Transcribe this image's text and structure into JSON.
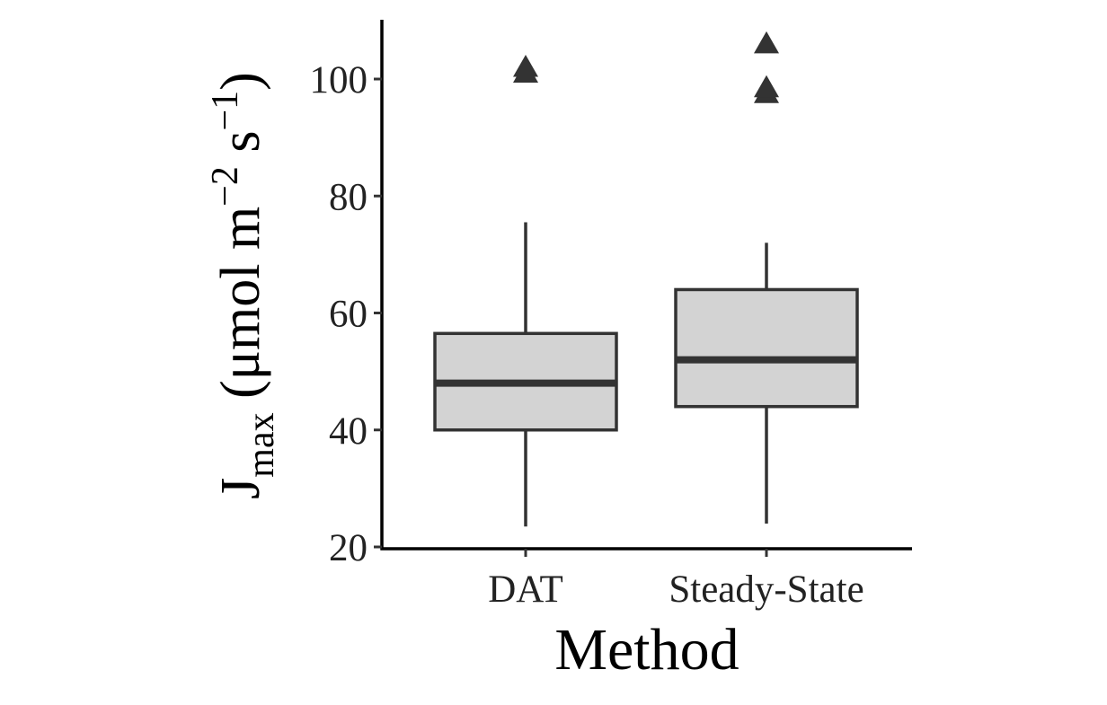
{
  "chart_data": {
    "type": "boxplot",
    "categories": [
      "DAT",
      "Steady-State"
    ],
    "boxes": [
      {
        "category": "DAT",
        "whisker_low": 23.5,
        "q1": 40,
        "median": 48,
        "q3": 56.5,
        "whisker_high": 75.5,
        "outliers": [
          101,
          102
        ]
      },
      {
        "category": "Steady-State",
        "whisker_low": 24,
        "q1": 44,
        "median": 52,
        "q3": 64,
        "whisker_high": 72,
        "outliers": [
          97.5,
          98.5,
          106
        ]
      }
    ],
    "xlabel": "Method",
    "ylabel": {
      "base": "J",
      "subscript": "max",
      "unit_open": " (μmol m",
      "unit_exp1": "−2",
      "unit_mid": " s",
      "unit_exp2": "−1",
      "unit_close": ")"
    },
    "ylim": [
      20,
      110
    ],
    "yticks": [
      20,
      40,
      60,
      80,
      100
    ],
    "grid": false,
    "legend": "none",
    "colors": {
      "box_fill": "#d3d3d3",
      "stroke": "#333333",
      "axis": "#000000"
    }
  }
}
